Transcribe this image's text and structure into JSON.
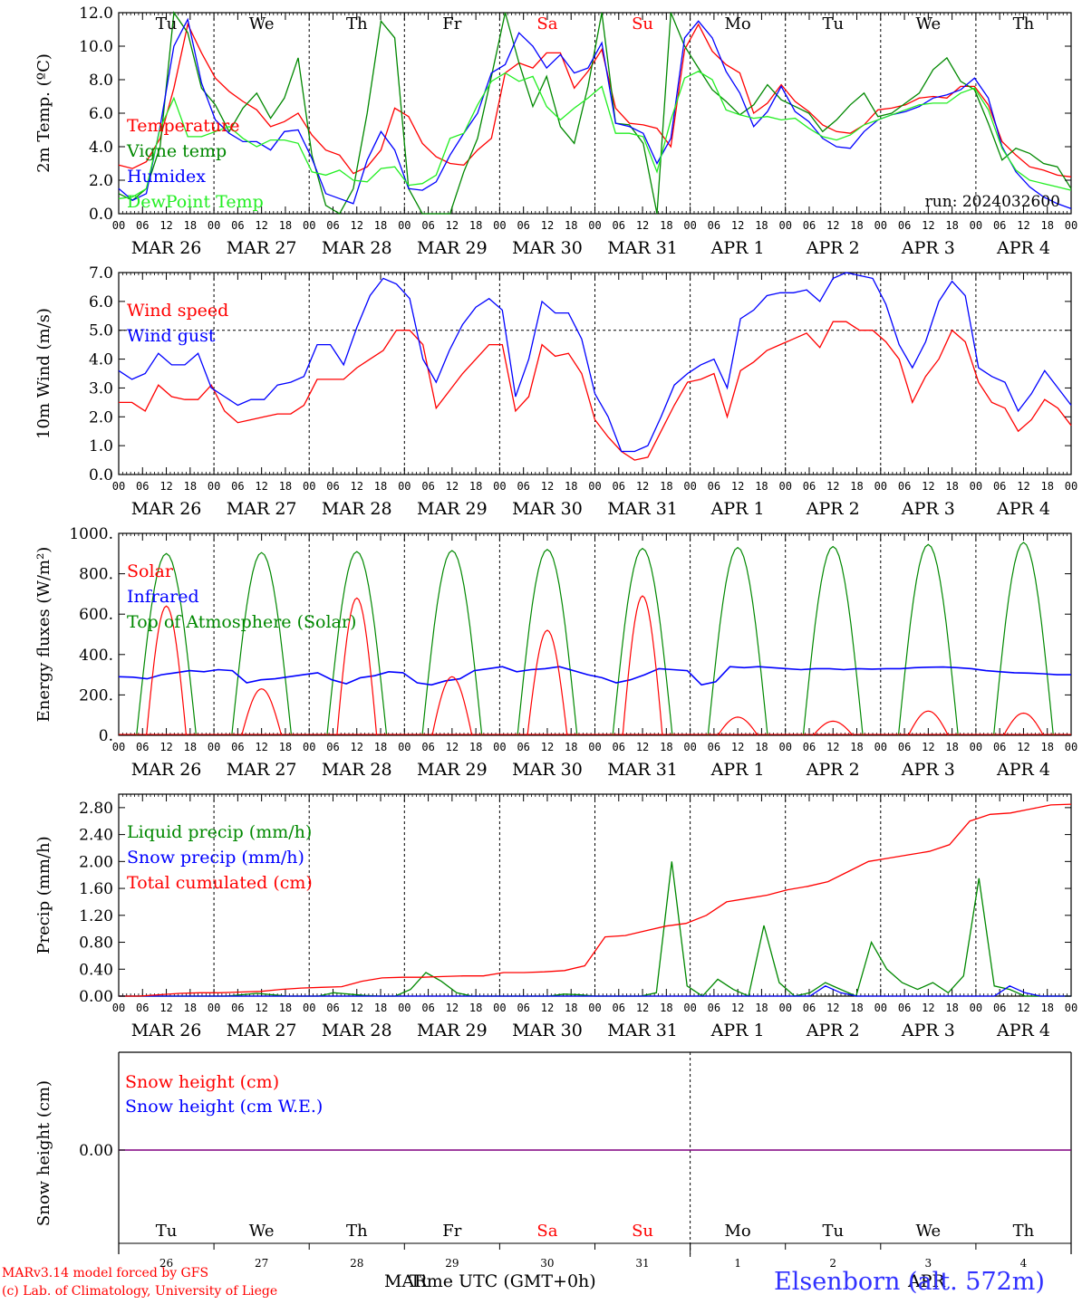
{
  "footer": {
    "credit_line1": "MARv3.14 model forced by GFS",
    "credit_line2": "(c) Lab. of Climatology, University of Liege",
    "xaxis_title": "Time UTC (GMT+0h)",
    "station": "Elsenborn (alt. 572m)",
    "month_left": "MAR",
    "month_right": "APR"
  },
  "colors": {
    "red": "#ff0000",
    "green": "#008800",
    "blue": "#0000ff",
    "lightgreen": "#22ee22",
    "purple": "#800080",
    "weekend": "#ff0000"
  },
  "time_axis": {
    "hour_ticks": [
      "00",
      "06",
      "12",
      "18"
    ],
    "dates": [
      "MAR 26",
      "MAR 27",
      "MAR 28",
      "MAR 29",
      "MAR 30",
      "MAR 31",
      "APR  1",
      "APR  2",
      "APR  3",
      "APR  4"
    ],
    "weekdays": [
      "Tu",
      "We",
      "Th",
      "Fr",
      "Sa",
      "Su",
      "Mo",
      "Tu",
      "We",
      "Th"
    ],
    "weekend_idx": [
      4,
      5
    ],
    "day_numbers": [
      "26",
      "27",
      "28",
      "29",
      "30",
      "31",
      "1",
      "2",
      "3",
      "4"
    ]
  },
  "chart_data": [
    {
      "type": "line",
      "ylabel": "2m Temp. (ºC)",
      "ylim": [
        0,
        12
      ],
      "yticks": [
        "0.0",
        "2.0",
        "4.0",
        "6.0",
        "8.0",
        "10.0",
        "12.0"
      ],
      "run_label": "run: 2024032600",
      "series": [
        {
          "name": "Temperature",
          "color": "red",
          "values": [
            2.9,
            2.7,
            3.1,
            4.5,
            7.5,
            11.3,
            9.6,
            8.1,
            7.3,
            6.7,
            6.2,
            5.2,
            5.5,
            6.0,
            4.7,
            3.8,
            3.5,
            2.4,
            2.8,
            3.8,
            6.3,
            5.8,
            4.2,
            3.4,
            3.0,
            2.9,
            3.8,
            4.5,
            8.4,
            9.0,
            8.7,
            9.6,
            9.6,
            7.5,
            8.5,
            9.8,
            6.3,
            5.4,
            5.3,
            5.1,
            4.0,
            9.8,
            11.3,
            9.7,
            8.9,
            8.4,
            6.0,
            6.6,
            7.7,
            6.7,
            6.1,
            5.3,
            4.9,
            4.8,
            5.3,
            6.2,
            6.3,
            6.5,
            6.9,
            7.0,
            6.9,
            7.6,
            7.6,
            6.5,
            4.3,
            3.5,
            2.8,
            2.6,
            2.3,
            2.2
          ]
        },
        {
          "name": "Vigne temp",
          "color": "green",
          "values": [
            1.2,
            0.8,
            1.5,
            4.0,
            12.0,
            10.8,
            7.5,
            6.5,
            4.9,
            6.3,
            7.2,
            5.7,
            6.9,
            9.3,
            3.5,
            0.5,
            0.0,
            1.5,
            6.0,
            11.5,
            10.5,
            1.5,
            0.0,
            0.0,
            0.0,
            2.5,
            4.5,
            8.2,
            12.5,
            9.0,
            6.4,
            8.2,
            5.2,
            4.2,
            7.6,
            12.0,
            5.4,
            5.3,
            4.2,
            0.0,
            12.0,
            10.0,
            8.7,
            7.4,
            6.7,
            5.9,
            6.5,
            7.7,
            6.8,
            6.4,
            6.0,
            4.9,
            5.6,
            6.5,
            7.2,
            5.8,
            6.0,
            6.6,
            7.2,
            8.6,
            9.3,
            7.9,
            7.4,
            5.4,
            3.2,
            3.9,
            3.6,
            3.0,
            2.8,
            1.5
          ]
        },
        {
          "name": "Humidex",
          "color": "blue",
          "values": [
            1.5,
            0.8,
            1.2,
            5.2,
            10.0,
            11.6,
            7.8,
            5.6,
            4.8,
            4.3,
            4.3,
            3.8,
            4.9,
            5.0,
            3.3,
            1.2,
            0.9,
            0.6,
            3.2,
            4.9,
            3.8,
            1.5,
            1.4,
            1.9,
            3.5,
            4.8,
            6.0,
            8.4,
            8.9,
            10.8,
            10.0,
            8.7,
            9.5,
            8.4,
            8.7,
            10.2,
            5.4,
            5.2,
            4.8,
            3.0,
            4.5,
            10.5,
            11.5,
            10.5,
            8.5,
            7.2,
            5.2,
            6.1,
            7.6,
            6.1,
            5.5,
            4.5,
            4.0,
            3.9,
            4.9,
            5.6,
            5.9,
            6.1,
            6.4,
            6.9,
            7.1,
            7.4,
            8.1,
            6.9,
            4.0,
            2.5,
            1.6,
            1.0,
            0.6,
            0.3
          ]
        },
        {
          "name": "DewPoint Temp",
          "color": "lightgreen",
          "values": [
            0.9,
            1.0,
            1.5,
            5.1,
            6.9,
            4.6,
            4.6,
            4.9,
            5.2,
            4.5,
            4.0,
            4.4,
            4.4,
            4.2,
            2.5,
            2.3,
            2.6,
            2.0,
            1.9,
            2.7,
            2.8,
            1.7,
            1.8,
            2.3,
            4.5,
            4.8,
            6.5,
            7.9,
            8.4,
            7.9,
            8.2,
            6.4,
            5.6,
            6.3,
            6.9,
            7.6,
            4.8,
            4.8,
            4.6,
            2.5,
            5.6,
            8.1,
            8.5,
            8.0,
            6.2,
            5.9,
            5.7,
            5.8,
            5.6,
            5.7,
            5.1,
            4.6,
            4.4,
            4.7,
            5.3,
            5.6,
            5.9,
            6.2,
            6.5,
            6.6,
            6.6,
            7.2,
            7.5,
            6.2,
            3.9,
            2.6,
            2.0,
            1.8,
            1.6,
            1.4
          ]
        }
      ]
    },
    {
      "type": "line",
      "ylabel": "10m Wind (m/s)",
      "ylim": [
        0,
        7
      ],
      "yticks": [
        "0.0",
        "1.0",
        "2.0",
        "3.0",
        "4.0",
        "5.0",
        "6.0",
        "7.0"
      ],
      "ref_line": 5.0,
      "series": [
        {
          "name": "Wind speed",
          "color": "red",
          "values": [
            2.5,
            2.5,
            2.2,
            3.1,
            2.7,
            2.6,
            2.6,
            3.1,
            2.2,
            1.8,
            1.9,
            2.0,
            2.1,
            2.1,
            2.4,
            3.3,
            3.3,
            3.3,
            3.7,
            4.0,
            4.3,
            5.0,
            5.0,
            4.5,
            2.3,
            2.9,
            3.5,
            4.0,
            4.5,
            4.5,
            2.2,
            2.7,
            4.5,
            4.1,
            4.2,
            3.5,
            1.9,
            1.3,
            0.8,
            0.5,
            0.6,
            1.5,
            2.4,
            3.2,
            3.3,
            3.5,
            2.0,
            3.6,
            3.9,
            4.3,
            4.5,
            4.7,
            4.9,
            4.4,
            5.3,
            5.3,
            5.0,
            5.0,
            4.6,
            4.0,
            2.5,
            3.4,
            4.0,
            5.0,
            4.6,
            3.2,
            2.5,
            2.3,
            1.5,
            1.9,
            2.6,
            2.3,
            1.7
          ]
        },
        {
          "name": "Wind gust",
          "color": "blue",
          "values": [
            3.6,
            3.3,
            3.5,
            4.2,
            3.8,
            3.8,
            4.2,
            3.0,
            2.7,
            2.4,
            2.6,
            2.6,
            3.1,
            3.2,
            3.4,
            4.5,
            4.5,
            3.8,
            5.1,
            6.2,
            6.8,
            6.6,
            6.1,
            4.0,
            3.2,
            4.3,
            5.2,
            5.8,
            6.1,
            5.7,
            2.7,
            4.0,
            6.0,
            5.6,
            5.6,
            4.7,
            2.8,
            2.0,
            0.8,
            0.8,
            1.0,
            2.0,
            3.1,
            3.5,
            3.8,
            4.0,
            3.0,
            5.4,
            5.7,
            6.2,
            6.3,
            6.3,
            6.4,
            6.0,
            6.8,
            7.0,
            6.9,
            6.8,
            5.9,
            4.5,
            3.7,
            4.6,
            6.0,
            6.7,
            6.2,
            3.7,
            3.4,
            3.2,
            2.2,
            2.8,
            3.6,
            3.0,
            2.4
          ]
        }
      ]
    },
    {
      "type": "line",
      "ylabel": "Energy fluxes (W/m²)",
      "ylim": [
        0,
        1000
      ],
      "yticks": [
        "0.",
        "200.",
        "400.",
        "600.",
        "800.",
        "1000."
      ],
      "series": [
        {
          "name": "Solar",
          "color": "red",
          "daily_peak": [
            640,
            230,
            680,
            290,
            520,
            690,
            90,
            70,
            120,
            110
          ]
        },
        {
          "name": "Infrared",
          "color": "blue",
          "values": [
            290,
            288,
            280,
            300,
            310,
            320,
            315,
            325,
            320,
            260,
            275,
            280,
            290,
            300,
            310,
            275,
            255,
            285,
            295,
            315,
            310,
            260,
            250,
            270,
            280,
            320,
            330,
            340,
            315,
            325,
            330,
            340,
            320,
            300,
            285,
            260,
            275,
            300,
            330,
            325,
            320,
            250,
            265,
            340,
            335,
            340,
            335,
            330,
            325,
            330,
            330,
            325,
            330,
            328,
            330,
            330,
            335,
            337,
            338,
            335,
            330,
            320,
            315,
            310,
            308,
            305,
            300,
            300
          ]
        },
        {
          "name": "Top of Atmosphere (Solar)",
          "color": "green",
          "daily_peak": [
            900,
            905,
            910,
            915,
            920,
            925,
            930,
            935,
            945,
            955
          ]
        }
      ]
    },
    {
      "type": "line",
      "ylabel": "Precip (mm/h)",
      "ylim": [
        0,
        3
      ],
      "yticks": [
        "0.00",
        "0.40",
        "0.80",
        "1.20",
        "1.60",
        "2.00",
        "2.40",
        "2.80"
      ],
      "series": [
        {
          "name": "Liquid precip (mm/h)",
          "color": "green",
          "values": [
            0,
            0,
            0,
            0,
            0,
            0,
            0,
            0,
            0.02,
            0.04,
            0.02,
            0,
            0,
            0,
            0.05,
            0.03,
            0.01,
            0,
            0,
            0.1,
            0.35,
            0.22,
            0.05,
            0,
            0,
            0,
            0,
            0,
            0,
            0.03,
            0.02,
            0,
            0,
            0,
            0,
            0.05,
            2.0,
            0.15,
            0,
            0.25,
            0.1,
            0,
            1.05,
            0.2,
            0,
            0.05,
            0.2,
            0.1,
            0,
            0.8,
            0.4,
            0.2,
            0.1,
            0.2,
            0.05,
            0.3,
            1.75,
            0.15,
            0.1,
            0,
            0,
            0,
            0
          ]
        },
        {
          "name": "Snow precip (mm/h)",
          "color": "blue",
          "values": [
            0,
            0,
            0,
            0,
            0,
            0,
            0,
            0,
            0,
            0,
            0,
            0,
            0,
            0,
            0,
            0,
            0,
            0,
            0,
            0,
            0,
            0,
            0,
            0,
            0,
            0,
            0,
            0,
            0,
            0,
            0,
            0,
            0,
            0,
            0,
            0,
            0,
            0,
            0,
            0,
            0,
            0,
            0,
            0,
            0,
            0,
            0.15,
            0.05,
            0,
            0,
            0,
            0,
            0,
            0,
            0,
            0,
            0,
            0,
            0.15,
            0.05,
            0,
            0,
            0
          ]
        },
        {
          "name": "Total cumulated (cm)",
          "color": "red",
          "values": [
            0,
            0,
            0.02,
            0.04,
            0.05,
            0.05,
            0.06,
            0.07,
            0.1,
            0.12,
            0.13,
            0.14,
            0.22,
            0.27,
            0.28,
            0.28,
            0.29,
            0.3,
            0.3,
            0.35,
            0.35,
            0.36,
            0.38,
            0.45,
            0.88,
            0.9,
            0.97,
            1.04,
            1.08,
            1.2,
            1.4,
            1.45,
            1.5,
            1.58,
            1.63,
            1.7,
            1.85,
            2.0,
            2.05,
            2.1,
            2.15,
            2.25,
            2.6,
            2.7,
            2.72,
            2.78,
            2.84,
            2.85
          ]
        }
      ]
    },
    {
      "type": "line",
      "ylabel": "Snow height (cm)",
      "ytick": "0.00",
      "series": [
        {
          "name": "Snow height (cm)",
          "color": "red",
          "values": [
            0
          ]
        },
        {
          "name": "Snow height (cm W.E.)",
          "color": "blue",
          "values": [
            0
          ]
        }
      ]
    }
  ]
}
